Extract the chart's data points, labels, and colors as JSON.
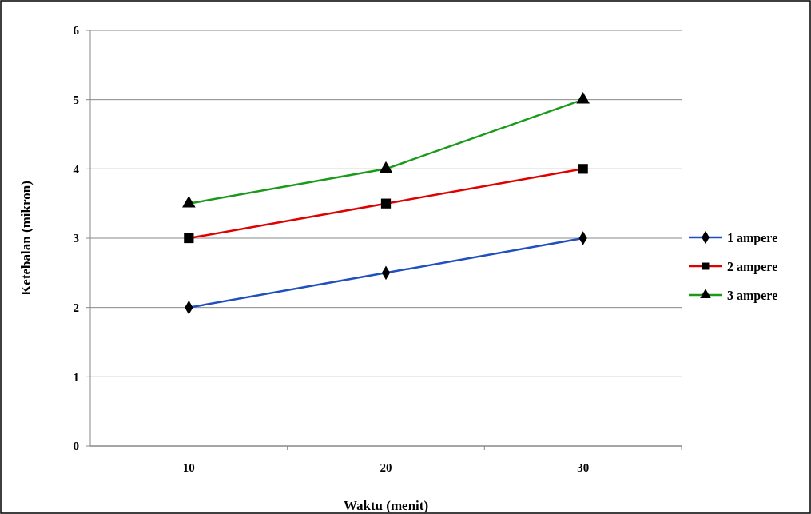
{
  "chart_data": {
    "type": "line",
    "xlabel": "Waktu (menit)",
    "ylabel": "Ketebalan (mikron)",
    "categories": [
      "10",
      "20",
      "30"
    ],
    "series": [
      {
        "name": "1 ampere",
        "color": "#1f4fc0",
        "values": [
          2,
          2.5,
          3
        ],
        "marker": "diamond"
      },
      {
        "name": "2 ampere",
        "color": "#e00000",
        "values": [
          3,
          3.5,
          4
        ],
        "marker": "square"
      },
      {
        "name": "3 ampere",
        "color": "#1a9a1a",
        "values": [
          3.5,
          4,
          5
        ],
        "marker": "triangle"
      }
    ],
    "ylim": [
      0,
      6
    ],
    "yticks": [
      0,
      1,
      2,
      3,
      4,
      5,
      6
    ],
    "grid": "y",
    "legend": "right",
    "line_style": "solid"
  }
}
